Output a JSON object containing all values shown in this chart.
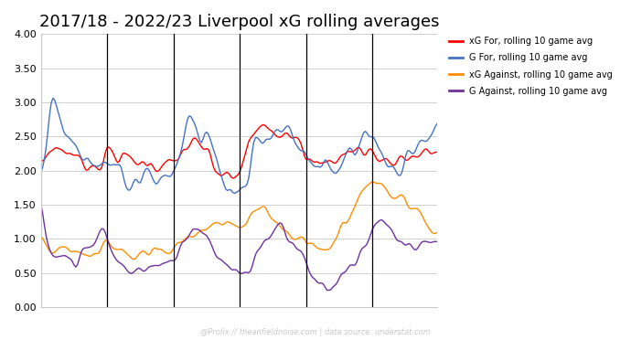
{
  "title": "2017/18 - 2022/23 Liverpool xG rolling averages",
  "title_fontsize": 13,
  "ylim": [
    0.0,
    4.0
  ],
  "yticks": [
    0.0,
    0.5,
    1.0,
    1.5,
    2.0,
    2.5,
    3.0,
    3.5,
    4.0
  ],
  "background_color": "#ffffff",
  "grid_color": "#c8c8c8",
  "watermark": "@Prolix // theanfieldnoise.com | data source: understat.com",
  "watermark_color": "#c8c8c8",
  "legend_entries": [
    {
      "label": "xG For, rolling 10 game avg",
      "color": "#ff0000"
    },
    {
      "label": "G For, rolling 10 game avg",
      "color": "#4472c4"
    },
    {
      "label": "xG Against, rolling 10 game avg",
      "color": "#ff8c00"
    },
    {
      "label": "G Against, rolling 10 game avg",
      "color": "#7030a0"
    }
  ],
  "vline_color": "#000000",
  "vline_positions": [
    38,
    76,
    114,
    152,
    190
  ],
  "line_width": 1.0,
  "n_total": 228
}
